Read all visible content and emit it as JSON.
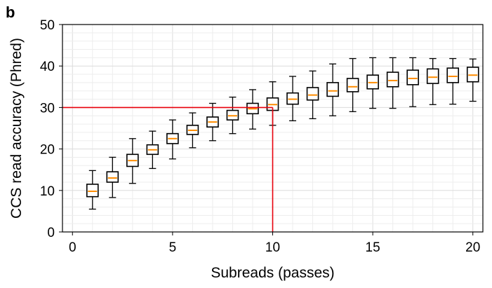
{
  "panel_label": "b",
  "chart_data": {
    "type": "boxplot",
    "xlabel": "Subreads (passes)",
    "ylabel": "CCS read accuracy (Phred)",
    "xlim": [
      -0.5,
      20.5
    ],
    "ylim": [
      0,
      50
    ],
    "xticks": [
      0,
      5,
      10,
      15,
      20
    ],
    "yticks": [
      0,
      10,
      20,
      30,
      40,
      50
    ],
    "grid": true,
    "box_color": "#000000",
    "median_color": "#ff8c00",
    "reference_color": "#e8000b",
    "reference": {
      "x": 10,
      "y": 30
    },
    "boxes": [
      {
        "x": 1,
        "whisker_low": 5.5,
        "q1": 8.5,
        "median": 9.8,
        "q3": 11.5,
        "whisker_high": 14.8
      },
      {
        "x": 2,
        "whisker_low": 8.3,
        "q1": 12.0,
        "median": 13.0,
        "q3": 14.5,
        "whisker_high": 18.0
      },
      {
        "x": 3,
        "whisker_low": 11.7,
        "q1": 15.8,
        "median": 17.2,
        "q3": 18.7,
        "whisker_high": 22.5
      },
      {
        "x": 4,
        "whisker_low": 15.3,
        "q1": 18.7,
        "median": 19.8,
        "q3": 21.0,
        "whisker_high": 24.3
      },
      {
        "x": 5,
        "whisker_low": 17.6,
        "q1": 21.3,
        "median": 22.5,
        "q3": 23.7,
        "whisker_high": 27.0
      },
      {
        "x": 6,
        "whisker_low": 20.3,
        "q1": 23.5,
        "median": 24.5,
        "q3": 25.7,
        "whisker_high": 28.7
      },
      {
        "x": 7,
        "whisker_low": 22.0,
        "q1": 25.3,
        "median": 26.5,
        "q3": 27.7,
        "whisker_high": 31.0
      },
      {
        "x": 8,
        "whisker_low": 23.7,
        "q1": 27.0,
        "median": 28.0,
        "q3": 29.3,
        "whisker_high": 32.5
      },
      {
        "x": 9,
        "whisker_low": 24.8,
        "q1": 28.5,
        "median": 29.7,
        "q3": 31.0,
        "whisker_high": 34.3
      },
      {
        "x": 10,
        "whisker_low": 25.7,
        "q1": 29.3,
        "median": 30.7,
        "q3": 32.3,
        "whisker_high": 36.2
      },
      {
        "x": 11,
        "whisker_low": 26.8,
        "q1": 30.8,
        "median": 32.0,
        "q3": 33.5,
        "whisker_high": 37.5
      },
      {
        "x": 12,
        "whisker_low": 27.3,
        "q1": 31.8,
        "median": 33.0,
        "q3": 34.8,
        "whisker_high": 38.8
      },
      {
        "x": 13,
        "whisker_low": 28.0,
        "q1": 32.7,
        "median": 34.0,
        "q3": 36.0,
        "whisker_high": 40.5
      },
      {
        "x": 14,
        "whisker_low": 29.0,
        "q1": 33.8,
        "median": 35.0,
        "q3": 37.0,
        "whisker_high": 41.8
      },
      {
        "x": 15,
        "whisker_low": 29.8,
        "q1": 34.5,
        "median": 36.0,
        "q3": 37.8,
        "whisker_high": 42.0
      },
      {
        "x": 16,
        "whisker_low": 29.8,
        "q1": 35.0,
        "median": 36.5,
        "q3": 38.5,
        "whisker_high": 42.0
      },
      {
        "x": 17,
        "whisker_low": 30.2,
        "q1": 35.5,
        "median": 37.0,
        "q3": 39.0,
        "whisker_high": 42.0
      },
      {
        "x": 18,
        "whisker_low": 30.7,
        "q1": 35.8,
        "median": 37.3,
        "q3": 39.3,
        "whisker_high": 41.8
      },
      {
        "x": 19,
        "whisker_low": 30.8,
        "q1": 36.0,
        "median": 37.5,
        "q3": 39.5,
        "whisker_high": 41.8
      },
      {
        "x": 20,
        "whisker_low": 31.5,
        "q1": 36.2,
        "median": 37.8,
        "q3": 39.7,
        "whisker_high": 41.7
      }
    ]
  }
}
